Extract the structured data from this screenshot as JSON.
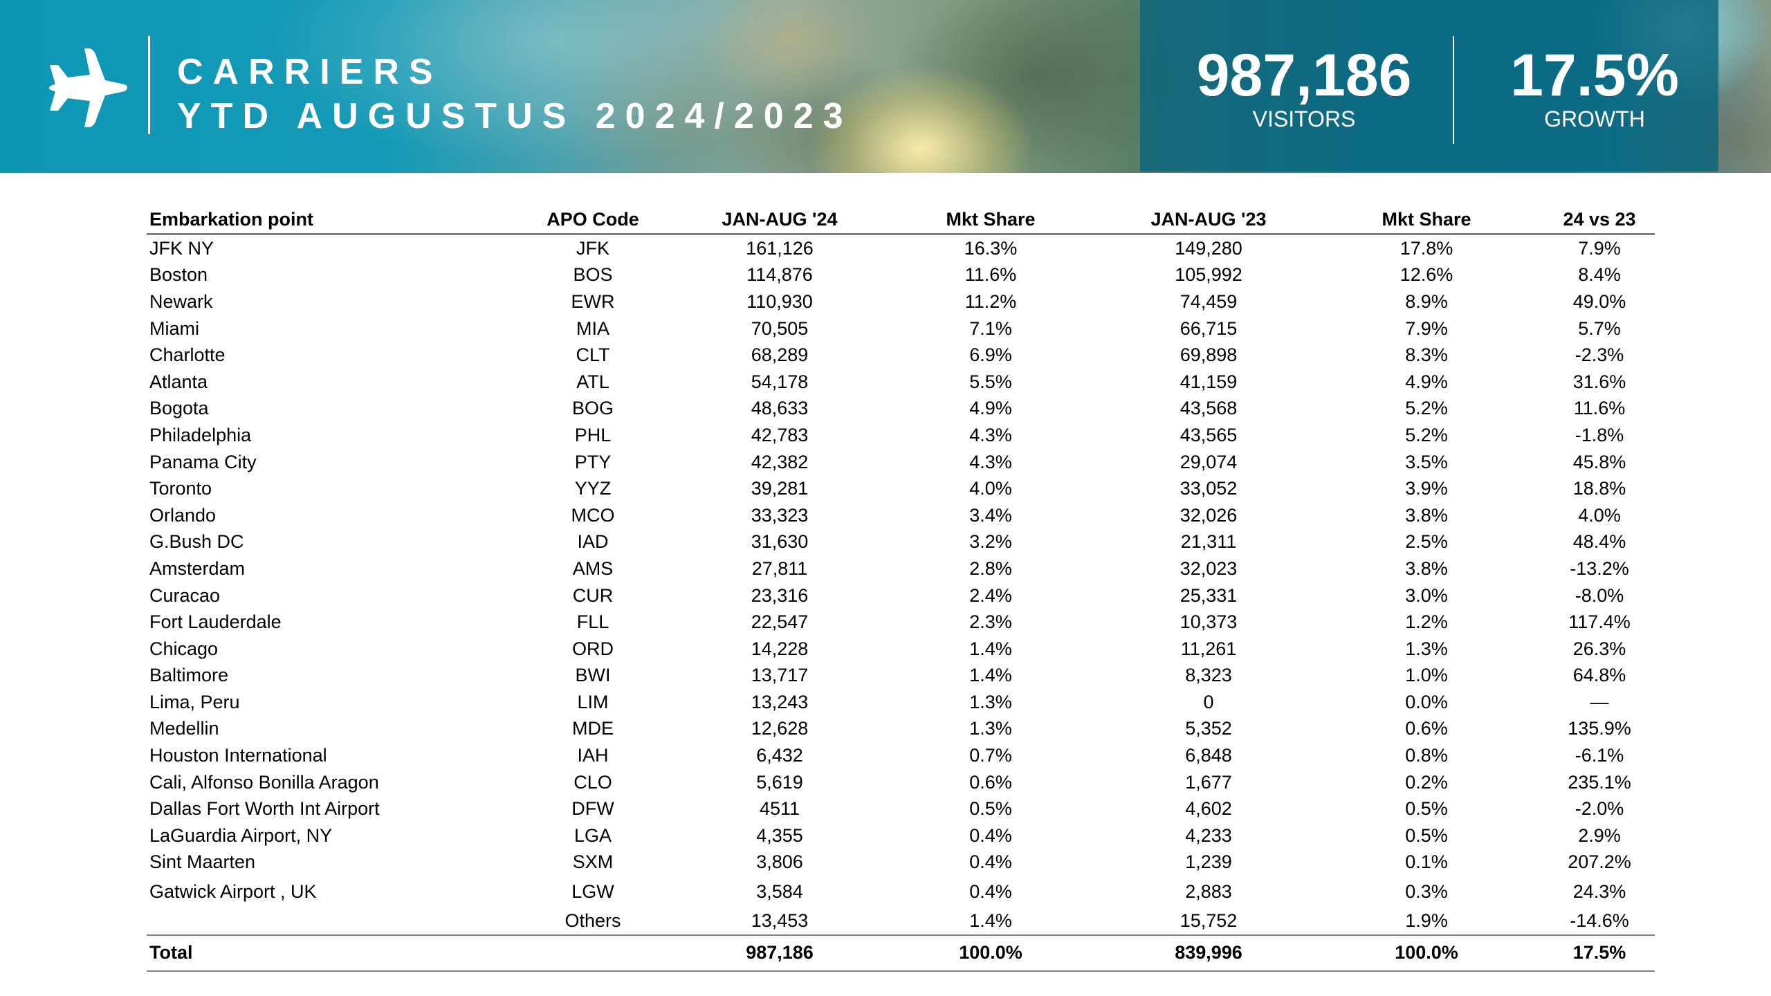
{
  "header": {
    "title_line1": "CARRIERS",
    "title_line2": "YTD AUGUSTUS 2024/2023",
    "visitors_value": "987,186",
    "visitors_label": "VISITORS",
    "growth_value": "17.5%",
    "growth_label": "GROWTH",
    "icon": "airplane-icon"
  },
  "colors": {
    "banner_teal": "#0c97b5",
    "stats_panel": "#0a647d",
    "rule": "#808080"
  },
  "table": {
    "columns": [
      "Embarkation point",
      "APO Code",
      "JAN-AUG '24",
      "Mkt Share",
      "JAN-AUG '23",
      "Mkt Share",
      "24 vs 23"
    ],
    "rows": [
      [
        "JFK NY",
        "JFK",
        "161,126",
        "16.3%",
        "149,280",
        "17.8%",
        "7.9%"
      ],
      [
        "Boston",
        "BOS",
        "114,876",
        "11.6%",
        "105,992",
        "12.6%",
        "8.4%"
      ],
      [
        "Newark",
        "EWR",
        "110,930",
        "11.2%",
        "74,459",
        "8.9%",
        "49.0%"
      ],
      [
        "Miami",
        "MIA",
        "70,505",
        "7.1%",
        "66,715",
        "7.9%",
        "5.7%"
      ],
      [
        "Charlotte",
        "CLT",
        "68,289",
        "6.9%",
        "69,898",
        "8.3%",
        "-2.3%"
      ],
      [
        "Atlanta",
        "ATL",
        "54,178",
        "5.5%",
        "41,159",
        "4.9%",
        "31.6%"
      ],
      [
        "Bogota",
        "BOG",
        "48,633",
        "4.9%",
        "43,568",
        "5.2%",
        "11.6%"
      ],
      [
        "Philadelphia",
        "PHL",
        "42,783",
        "4.3%",
        "43,565",
        "5.2%",
        "-1.8%"
      ],
      [
        "Panama City",
        "PTY",
        "42,382",
        "4.3%",
        "29,074",
        "3.5%",
        "45.8%"
      ],
      [
        "Toronto",
        "YYZ",
        "39,281",
        "4.0%",
        "33,052",
        "3.9%",
        "18.8%"
      ],
      [
        "Orlando",
        "MCO",
        "33,323",
        "3.4%",
        "32,026",
        "3.8%",
        "4.0%"
      ],
      [
        "G.Bush DC",
        "IAD",
        "31,630",
        "3.2%",
        "21,311",
        "2.5%",
        "48.4%"
      ],
      [
        "Amsterdam",
        "AMS",
        "27,811",
        "2.8%",
        "32,023",
        "3.8%",
        "-13.2%"
      ],
      [
        "Curacao",
        "CUR",
        "23,316",
        "2.4%",
        "25,331",
        "3.0%",
        "-8.0%"
      ],
      [
        "Fort Lauderdale",
        "FLL",
        "22,547",
        "2.3%",
        "10,373",
        "1.2%",
        "117.4%"
      ],
      [
        "Chicago",
        "ORD",
        "14,228",
        "1.4%",
        "11,261",
        "1.3%",
        "26.3%"
      ],
      [
        "Baltimore",
        "BWI",
        "13,717",
        "1.4%",
        "8,323",
        "1.0%",
        "64.8%"
      ],
      [
        "Lima, Peru",
        "LIM",
        "13,243",
        "1.3%",
        "0",
        "0.0%",
        "—"
      ],
      [
        "Medellin",
        "MDE",
        "12,628",
        "1.3%",
        "5,352",
        "0.6%",
        "135.9%"
      ],
      [
        "Houston International",
        "IAH",
        "6,432",
        "0.7%",
        "6,848",
        "0.8%",
        "-6.1%"
      ],
      [
        "Cali, Alfonso Bonilla Aragon",
        "CLO",
        "5,619",
        "0.6%",
        "1,677",
        "0.2%",
        "235.1%"
      ],
      [
        "Dallas Fort Worth Int Airport",
        "DFW",
        "4511",
        "0.5%",
        "4,602",
        "0.5%",
        "-2.0%"
      ],
      [
        "LaGuardia Airport, NY",
        "LGA",
        "4,355",
        "0.4%",
        "4,233",
        "0.5%",
        "2.9%"
      ],
      [
        "Sint Maarten",
        "SXM",
        "3,806",
        "0.4%",
        "1,239",
        "0.1%",
        "207.2%"
      ],
      [
        "Gatwick Airport , UK",
        "LGW",
        "3,584",
        "0.4%",
        "2,883",
        "0.3%",
        "24.3%"
      ]
    ],
    "others": [
      "",
      "Others",
      "13,453",
      "1.4%",
      "15,752",
      "1.9%",
      "-14.6%"
    ],
    "total": [
      "Total",
      "",
      "987,186",
      "100.0%",
      "839,996",
      "100.0%",
      "17.5%"
    ]
  }
}
